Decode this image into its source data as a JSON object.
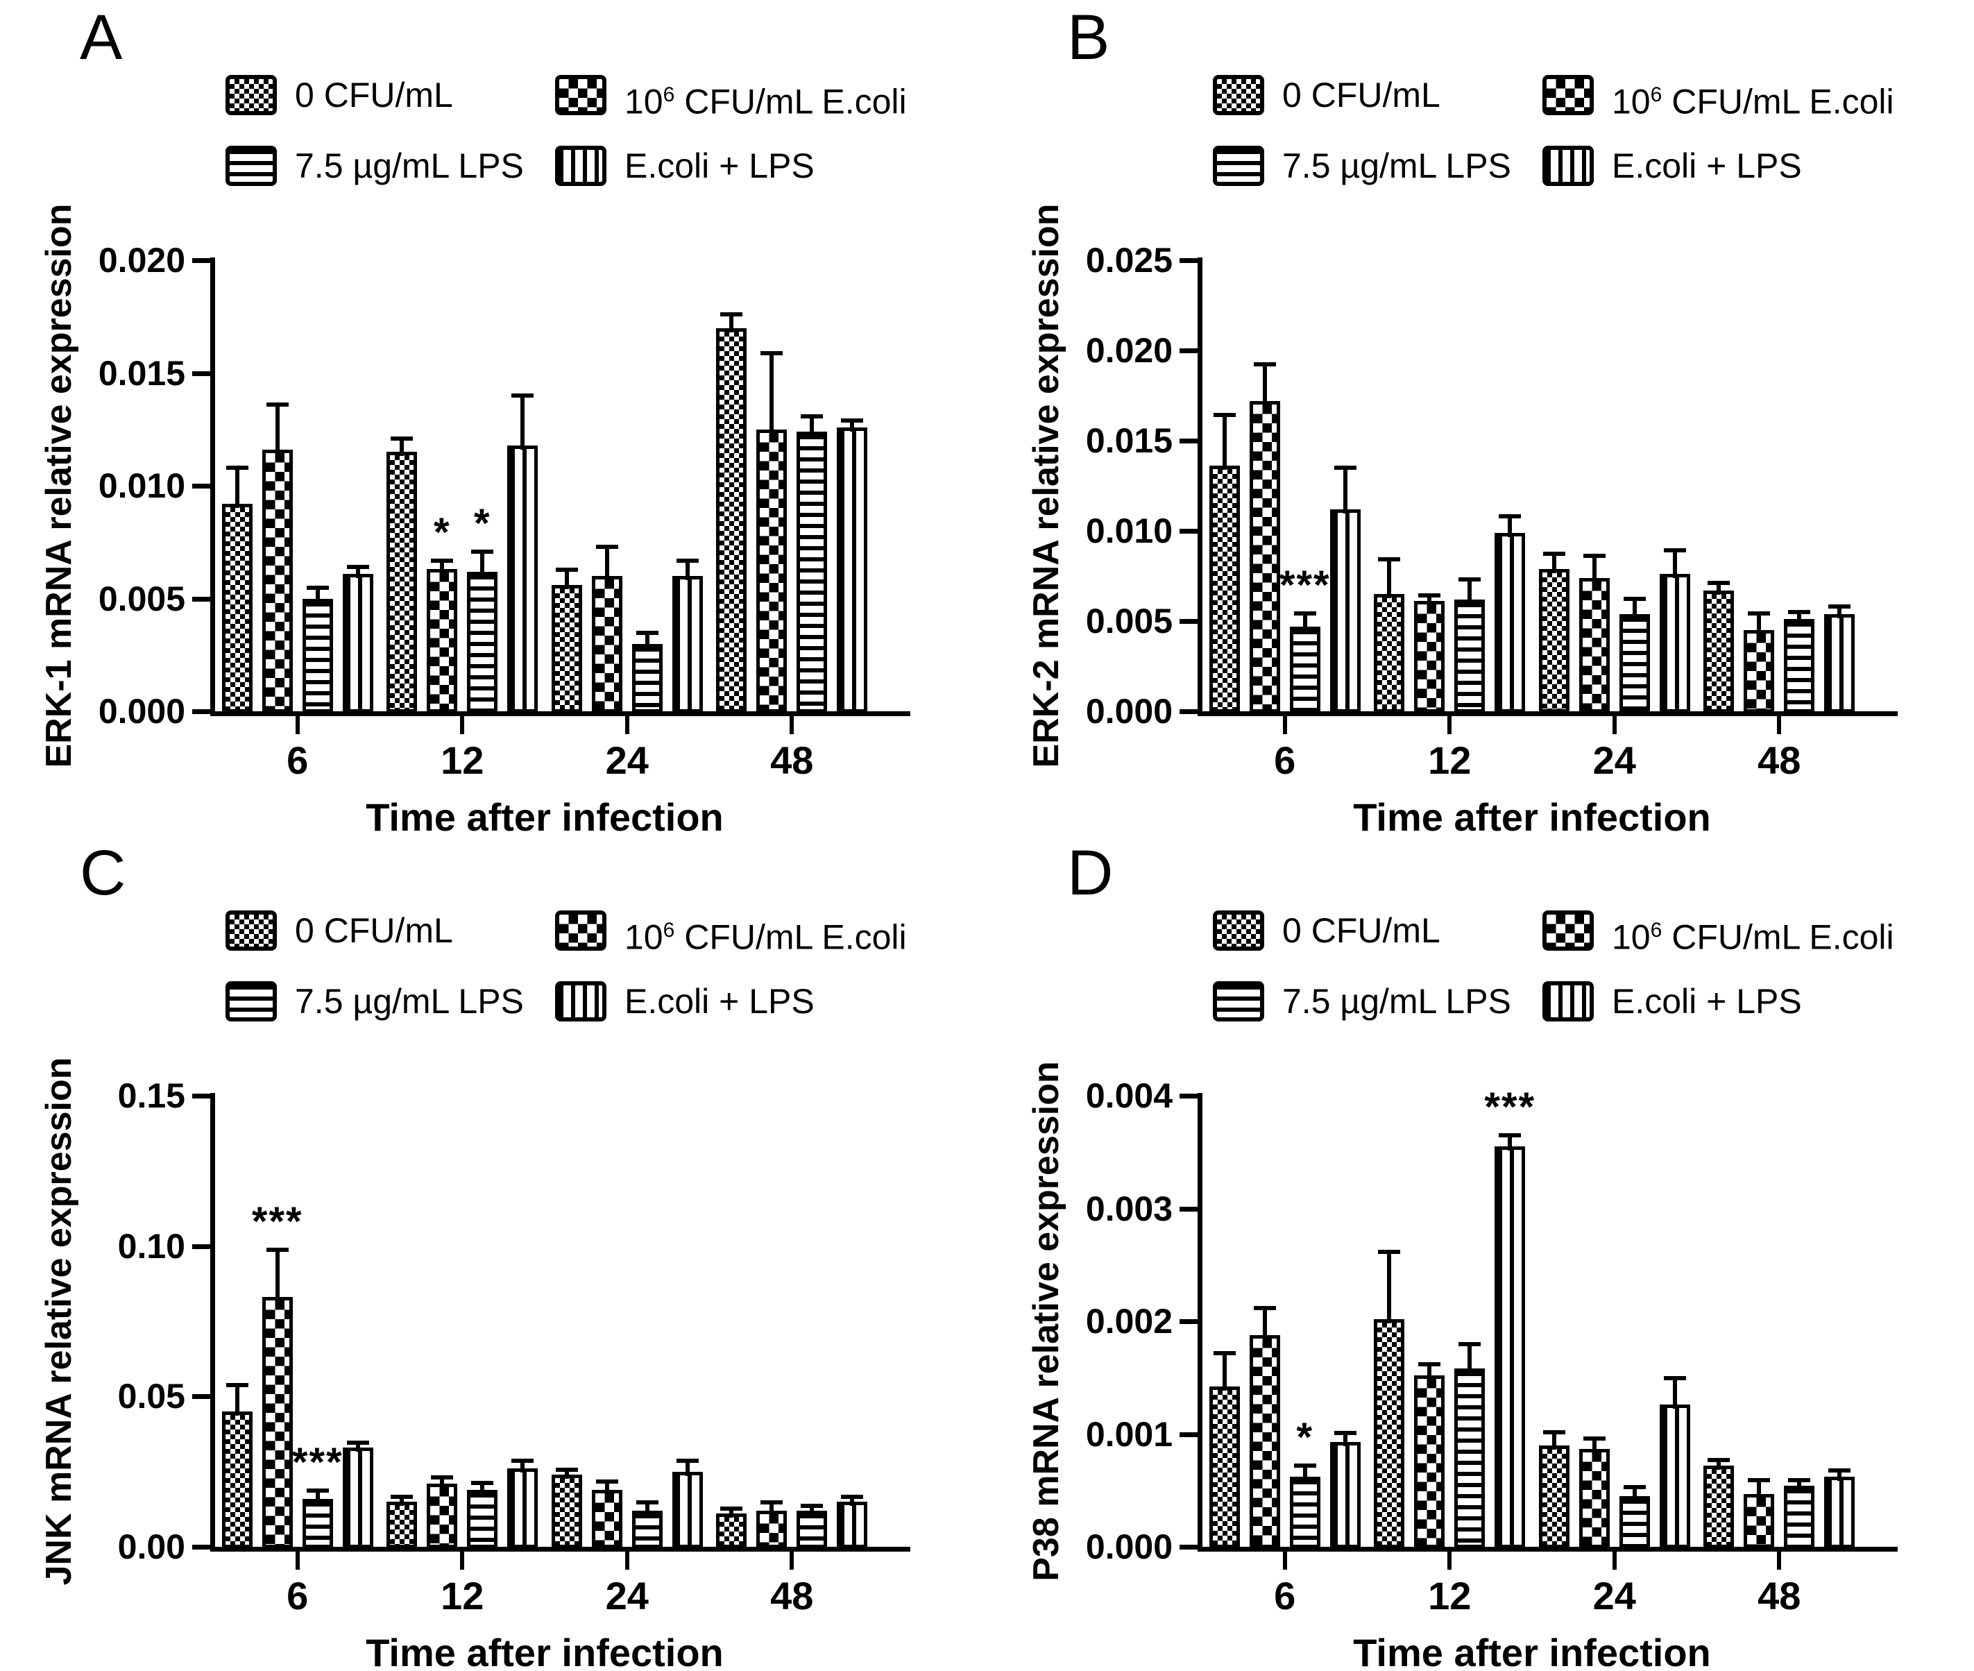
{
  "figure": {
    "background_color": "#ffffff",
    "ink_color": "#000000",
    "xlabel": "Time after infection",
    "legend_labels": [
      "0 CFU/mL",
      "10^6 CFU/mL E.coli",
      "7.5 µg/mL LPS",
      "E.coli + LPS"
    ],
    "legend_patterns": [
      "checker-sm",
      "checker-lg",
      "hlines",
      "vlines"
    ]
  },
  "chart_data": [
    {
      "type": "bar",
      "panel_label": "A",
      "title": "",
      "ylabel": "ERK-1 mRNA relative expression",
      "xlabel": "Time after infection",
      "ylim": [
        0,
        0.02
      ],
      "grid": false,
      "legend_position": "top",
      "yticks": [
        {
          "label": "0.000",
          "value": 0.0
        },
        {
          "label": "0.005",
          "value": 0.005
        },
        {
          "label": "0.010",
          "value": 0.01
        },
        {
          "label": "0.015",
          "value": 0.015
        },
        {
          "label": "0.020",
          "value": 0.02
        }
      ],
      "categories": [
        "6",
        "12",
        "24",
        "48"
      ],
      "series": [
        {
          "name": "0 CFU/mL",
          "pattern": "checker-sm",
          "values": [
            0.0092,
            0.0115,
            0.0056,
            0.017
          ],
          "errors": [
            0.0015,
            0.0005,
            0.0006,
            0.0005
          ],
          "sig": [
            "",
            "",
            "",
            ""
          ]
        },
        {
          "name": "10^6 CFU/mL E.coli",
          "pattern": "checker-lg",
          "values": [
            0.0116,
            0.0063,
            0.006,
            0.0125
          ],
          "errors": [
            0.0019,
            0.0003,
            0.0012,
            0.0033
          ],
          "sig": [
            "",
            "*",
            "",
            ""
          ]
        },
        {
          "name": "7.5 µg/mL LPS",
          "pattern": "hlines",
          "values": [
            0.005,
            0.0062,
            0.003,
            0.0124
          ],
          "errors": [
            0.0004,
            0.0008,
            0.0004,
            0.0006
          ],
          "sig": [
            "",
            "*",
            "",
            ""
          ]
        },
        {
          "name": "E.coli + LPS",
          "pattern": "vlines",
          "values": [
            0.0061,
            0.0118,
            0.006,
            0.0126
          ],
          "errors": [
            0.0002,
            0.0021,
            0.0006,
            0.0002
          ],
          "sig": [
            "",
            "",
            "",
            ""
          ]
        }
      ]
    },
    {
      "type": "bar",
      "panel_label": "B",
      "title": "",
      "ylabel": "ERK-2 mRNA relative expression",
      "xlabel": "Time after infection",
      "ylim": [
        0,
        0.025
      ],
      "grid": false,
      "legend_position": "top",
      "yticks": [
        {
          "label": "0.000",
          "value": 0.0
        },
        {
          "label": "0.005",
          "value": 0.005
        },
        {
          "label": "0.010",
          "value": 0.01
        },
        {
          "label": "0.015",
          "value": 0.015
        },
        {
          "label": "0.020",
          "value": 0.02
        },
        {
          "label": "0.025",
          "value": 0.025
        }
      ],
      "categories": [
        "6",
        "12",
        "24",
        "48"
      ],
      "series": [
        {
          "name": "0 CFU/mL",
          "pattern": "checker-sm",
          "values": [
            0.0136,
            0.0065,
            0.0079,
            0.0067
          ],
          "errors": [
            0.0027,
            0.0018,
            0.0007,
            0.0003
          ],
          "sig": [
            "",
            "",
            "",
            ""
          ]
        },
        {
          "name": "10^6 CFU/mL E.coli",
          "pattern": "checker-lg",
          "values": [
            0.0172,
            0.0061,
            0.0074,
            0.0045
          ],
          "errors": [
            0.0019,
            0.0002,
            0.0011,
            0.0008
          ],
          "sig": [
            "",
            "",
            "",
            ""
          ]
        },
        {
          "name": "7.5 µg/mL LPS",
          "pattern": "hlines",
          "values": [
            0.0047,
            0.0062,
            0.0054,
            0.0051
          ],
          "errors": [
            0.0006,
            0.001,
            0.0007,
            0.0003
          ],
          "sig": [
            "***",
            "",
            "",
            ""
          ]
        },
        {
          "name": "E.coli + LPS",
          "pattern": "vlines",
          "values": [
            0.0112,
            0.0099,
            0.0076,
            0.0054
          ],
          "errors": [
            0.0022,
            0.0008,
            0.0012,
            0.0003
          ],
          "sig": [
            "",
            "",
            "",
            ""
          ]
        }
      ]
    },
    {
      "type": "bar",
      "panel_label": "C",
      "title": "",
      "ylabel": "JNK mRNA relative expression",
      "xlabel": "Time after infection",
      "ylim": [
        0,
        0.15
      ],
      "grid": false,
      "legend_position": "top",
      "yticks": [
        {
          "label": "0.00",
          "value": 0.0
        },
        {
          "label": "0.05",
          "value": 0.05
        },
        {
          "label": "0.10",
          "value": 0.1
        },
        {
          "label": "0.15",
          "value": 0.15
        }
      ],
      "categories": [
        "6",
        "12",
        "24",
        "48"
      ],
      "series": [
        {
          "name": "0 CFU/mL",
          "pattern": "checker-sm",
          "values": [
            0.045,
            0.015,
            0.024,
            0.011
          ],
          "errors": [
            0.008,
            0.001,
            0.001,
            0.001
          ],
          "sig": [
            "",
            "",
            "",
            ""
          ]
        },
        {
          "name": "10^6 CFU/mL E.coli",
          "pattern": "checker-lg",
          "values": [
            0.083,
            0.021,
            0.019,
            0.012
          ],
          "errors": [
            0.015,
            0.0015,
            0.002,
            0.002
          ],
          "sig": [
            "***",
            "",
            "",
            ""
          ]
        },
        {
          "name": "7.5 µg/mL LPS",
          "pattern": "hlines",
          "values": [
            0.016,
            0.019,
            0.012,
            0.012
          ],
          "errors": [
            0.002,
            0.0015,
            0.002,
            0.001
          ],
          "sig": [
            "***",
            "",
            "",
            ""
          ]
        },
        {
          "name": "E.coli + LPS",
          "pattern": "vlines",
          "values": [
            0.033,
            0.026,
            0.025,
            0.015
          ],
          "errors": [
            0.001,
            0.002,
            0.003,
            0.001
          ],
          "sig": [
            "",
            "",
            "",
            ""
          ]
        }
      ]
    },
    {
      "type": "bar",
      "panel_label": "D",
      "title": "",
      "ylabel": "P38 mRNA relative expression",
      "xlabel": "Time after infection",
      "ylim": [
        0,
        0.004
      ],
      "grid": false,
      "legend_position": "top",
      "yticks": [
        {
          "label": "0.000",
          "value": 0.0
        },
        {
          "label": "0.001",
          "value": 0.001
        },
        {
          "label": "0.002",
          "value": 0.002
        },
        {
          "label": "0.003",
          "value": 0.003
        },
        {
          "label": "0.004",
          "value": 0.004
        }
      ],
      "categories": [
        "6",
        "12",
        "24",
        "48"
      ],
      "series": [
        {
          "name": "0 CFU/mL",
          "pattern": "checker-sm",
          "values": [
            0.00142,
            0.00202,
            0.0009,
            0.00072
          ],
          "errors": [
            0.00028,
            0.00058,
            0.0001,
            3e-05
          ],
          "sig": [
            "",
            "",
            "",
            ""
          ]
        },
        {
          "name": "10^6 CFU/mL E.coli",
          "pattern": "checker-lg",
          "values": [
            0.00188,
            0.00152,
            0.00087,
            0.00047
          ],
          "errors": [
            0.00022,
            8e-05,
            7e-05,
            0.0001
          ],
          "sig": [
            "",
            "",
            "",
            ""
          ]
        },
        {
          "name": "7.5 µg/mL LPS",
          "pattern": "hlines",
          "values": [
            0.00062,
            0.00158,
            0.00045,
            0.00054
          ],
          "errors": [
            8e-05,
            0.0002,
            6e-05,
            3e-05
          ],
          "sig": [
            "*",
            "",
            "",
            ""
          ]
        },
        {
          "name": "E.coli + LPS",
          "pattern": "vlines",
          "values": [
            0.00093,
            0.00355,
            0.00126,
            0.00062
          ],
          "errors": [
            6e-05,
            8e-05,
            0.00022,
            4e-05
          ],
          "sig": [
            "",
            "***",
            "",
            ""
          ]
        }
      ]
    }
  ]
}
